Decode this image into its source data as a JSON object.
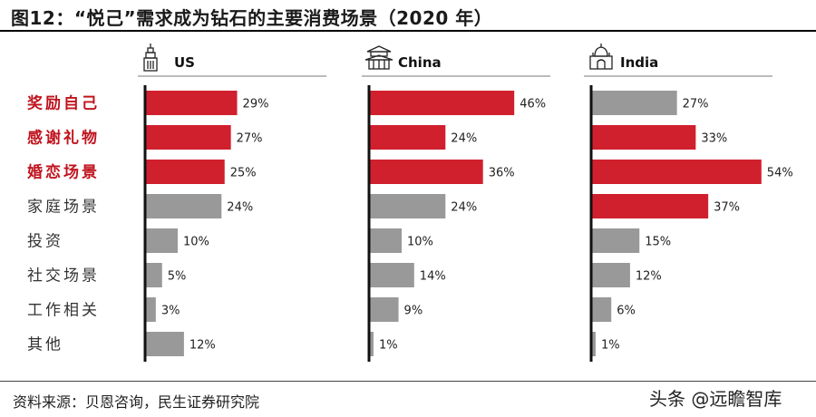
{
  "header": {
    "title": "图12：“悦己”需求成为钻石的主要消费场景（2020 年）"
  },
  "footer": {
    "source": "资料来源：贝恩咨询，民生证券研究院",
    "watermark": "头条 @远瞻智库"
  },
  "colors": {
    "highlight": "#d0202e",
    "normal": "#999999",
    "highlight_label": "#c0141f",
    "normal_label": "#333333"
  },
  "chart_data": {
    "type": "bar",
    "orientation": "horizontal",
    "categories": [
      "奖励自己",
      "感谢礼物",
      "婚恋场景",
      "家庭场景",
      "投资",
      "社交场景",
      "工作相关",
      "其他"
    ],
    "highlighted_categories": [
      "奖励自己",
      "感谢礼物",
      "婚恋场景"
    ],
    "panels": [
      {
        "name": "US",
        "icon": "skyscraper-icon",
        "values": [
          29,
          27,
          25,
          24,
          10,
          5,
          3,
          12
        ],
        "labels": [
          "29%",
          "27%",
          "25%",
          "24%",
          "10%",
          "5%",
          "3%",
          "12%"
        ],
        "highlight": [
          true,
          true,
          true,
          false,
          false,
          false,
          false,
          false
        ]
      },
      {
        "name": "China",
        "icon": "temple-icon",
        "values": [
          46,
          24,
          36,
          24,
          10,
          14,
          9,
          1
        ],
        "labels": [
          "46%",
          "24%",
          "36%",
          "24%",
          "10%",
          "14%",
          "9%",
          "1%"
        ],
        "highlight": [
          true,
          true,
          true,
          false,
          false,
          false,
          false,
          false
        ]
      },
      {
        "name": "India",
        "icon": "palace-icon",
        "values": [
          27,
          33,
          54,
          37,
          15,
          12,
          6,
          1
        ],
        "labels": [
          "27%",
          "33%",
          "54%",
          "37%",
          "15%",
          "12%",
          "6%",
          "1%"
        ],
        "highlight": [
          false,
          true,
          true,
          true,
          false,
          false,
          false,
          false
        ]
      }
    ],
    "unit": "%"
  }
}
